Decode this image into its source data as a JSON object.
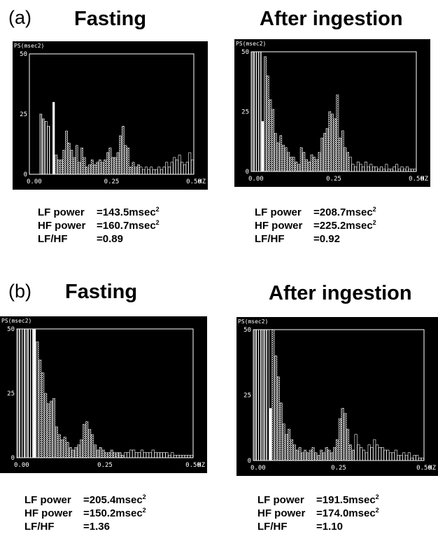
{
  "panels": [
    {
      "label": "(a)",
      "title_left": "Fasting",
      "title_right": "After ingestion"
    },
    {
      "label": "(b)",
      "title_left": "Fasting",
      "title_right": "After ingestion"
    }
  ],
  "stats": {
    "a_fasting": [
      {
        "name": "LF power",
        "value": "=143.5msec",
        "sup": "2"
      },
      {
        "name": "HF power",
        "value": "=160.7msec",
        "sup": "2"
      },
      {
        "name": "LF/HF",
        "value": "=0.89",
        "sup": ""
      }
    ],
    "a_after": [
      {
        "name": "LF power",
        "value": "=208.7msec",
        "sup": "2"
      },
      {
        "name": "HF power",
        "value": "=225.2msec",
        "sup": "2"
      },
      {
        "name": "LF/HF",
        "value": "=0.92",
        "sup": ""
      }
    ],
    "b_fasting": [
      {
        "name": "LF power",
        "value": "=205.4msec",
        "sup": "2"
      },
      {
        "name": "HF power",
        "value": "=150.2msec",
        "sup": "2"
      },
      {
        "name": "LF/HF",
        "value": "=1.36",
        "sup": ""
      }
    ],
    "b_after": [
      {
        "name": "LF power",
        "value": "=191.5msec",
        "sup": "2"
      },
      {
        "name": "HF power",
        "value": "=174.0msec",
        "sup": "2"
      },
      {
        "name": "LF/HF",
        "value": "=1.10",
        "sup": ""
      }
    ]
  },
  "colors": {
    "plot_bg": "#000000",
    "plot_fg": "#ffffff",
    "page_bg": "#ffffff"
  },
  "chart_data": [
    {
      "id": "a_fasting",
      "type": "bar",
      "ylabel": "PS(msec2)",
      "xlabel": "HZ",
      "xlim": [
        0.0,
        0.5
      ],
      "ylim": [
        0,
        50
      ],
      "xticks": [
        "0.00",
        "0.25",
        "0.50"
      ],
      "yticks": [
        "0",
        "25",
        "50"
      ],
      "bin_width": 0.0078125,
      "bin_start": 0.0,
      "values": [
        0,
        0,
        0,
        0,
        25,
        23,
        22,
        20,
        0,
        30,
        8,
        6,
        6,
        10,
        18,
        13,
        10,
        7,
        12,
        5,
        11,
        7,
        3,
        4,
        6,
        4,
        5,
        6,
        5,
        6,
        9,
        11,
        7,
        7,
        9,
        16,
        20,
        12,
        11,
        3,
        5,
        3,
        4,
        3,
        2,
        3,
        2,
        3,
        2,
        2,
        3,
        2,
        3,
        5,
        3,
        5,
        7,
        6,
        8,
        5,
        4,
        5,
        9,
        6
      ],
      "bar_styles": [
        "e",
        "e",
        "e",
        "e",
        "v",
        "v",
        "v",
        "v",
        "e",
        "s",
        "h",
        "h",
        "h",
        "h",
        "h",
        "h",
        "h",
        "h",
        "h",
        "h",
        "h",
        "h",
        "h",
        "h",
        "h",
        "h",
        "h",
        "h",
        "h",
        "h",
        "h",
        "h",
        "h",
        "h",
        "h",
        "h",
        "h",
        "h",
        "h",
        "h",
        "h",
        "h",
        "h",
        "o",
        "o",
        "o",
        "o",
        "o",
        "o",
        "o",
        "o",
        "o",
        "o",
        "o",
        "o",
        "o",
        "o",
        "o",
        "o",
        "o",
        "o",
        "o",
        "o",
        "o"
      ]
    },
    {
      "id": "a_after",
      "type": "bar",
      "ylabel": "PS(msec2)",
      "xlabel": "HZ",
      "xlim": [
        0.0,
        0.5
      ],
      "ylim": [
        0,
        50
      ],
      "xticks": [
        "0.00",
        "0.25",
        "0.50"
      ],
      "yticks": [
        "0",
        "25",
        "50"
      ],
      "bin_width": 0.0078125,
      "bin_start": 0.0,
      "values": [
        50,
        50,
        50,
        50,
        21,
        48,
        40,
        30,
        26,
        16,
        12,
        15,
        11,
        10,
        8,
        6,
        6,
        4,
        3,
        10,
        8,
        5,
        4,
        7,
        6,
        5,
        8,
        14,
        16,
        18,
        25,
        24,
        22,
        32,
        14,
        17,
        10,
        8,
        6,
        3,
        2,
        4,
        3,
        2,
        4,
        2,
        3,
        2,
        2,
        1,
        2,
        1,
        3,
        1,
        1,
        2,
        3,
        1,
        2,
        1,
        2,
        1,
        1,
        1
      ],
      "bar_styles": [
        "v",
        "v",
        "v",
        "v",
        "s",
        "h",
        "h",
        "h",
        "h",
        "h",
        "h",
        "h",
        "h",
        "h",
        "h",
        "h",
        "h",
        "h",
        "h",
        "h",
        "h",
        "h",
        "h",
        "h",
        "h",
        "h",
        "h",
        "h",
        "h",
        "h",
        "h",
        "h",
        "h",
        "h",
        "h",
        "h",
        "h",
        "h",
        "o",
        "o",
        "o",
        "o",
        "o",
        "o",
        "o",
        "o",
        "o",
        "o",
        "o",
        "o",
        "o",
        "o",
        "o",
        "o",
        "o",
        "o",
        "o",
        "o",
        "o",
        "o",
        "o",
        "o",
        "o",
        "o"
      ]
    },
    {
      "id": "b_fasting",
      "type": "bar",
      "ylabel": "PS(msec2)",
      "xlabel": "HZ",
      "xlim": [
        0.0,
        0.5
      ],
      "ylim": [
        0,
        50
      ],
      "xticks": [
        "0.00",
        "0.25",
        "0.50"
      ],
      "yticks": [
        "0",
        "25",
        "50"
      ],
      "bin_width": 0.0078125,
      "bin_start": 0.0,
      "values": [
        50,
        50,
        50,
        50,
        50,
        50,
        50,
        45,
        38,
        33,
        25,
        21,
        22,
        23,
        12,
        9,
        7,
        8,
        6,
        4,
        3,
        4,
        5,
        7,
        13,
        14,
        11,
        9,
        5,
        3,
        4,
        3,
        2,
        2,
        3,
        2,
        2,
        2,
        1,
        2,
        2,
        3,
        3,
        2,
        2,
        3,
        2,
        2,
        2,
        3,
        2,
        2,
        2,
        2,
        2,
        1,
        2,
        1,
        1,
        1,
        1,
        1,
        1,
        1
      ],
      "bar_styles": [
        "v",
        "v",
        "v",
        "v",
        "v",
        "v",
        "s",
        "h",
        "h",
        "h",
        "h",
        "h",
        "h",
        "h",
        "h",
        "h",
        "h",
        "h",
        "h",
        "h",
        "h",
        "h",
        "h",
        "h",
        "h",
        "h",
        "h",
        "h",
        "h",
        "h",
        "h",
        "h",
        "h",
        "h",
        "h",
        "h",
        "h",
        "h",
        "h",
        "o",
        "o",
        "o",
        "o",
        "o",
        "o",
        "o",
        "o",
        "o",
        "o",
        "o",
        "o",
        "o",
        "o",
        "o",
        "o",
        "o",
        "o",
        "o",
        "o",
        "o",
        "o",
        "o",
        "o",
        "o"
      ]
    },
    {
      "id": "b_after",
      "type": "bar",
      "ylabel": "PS(msec2)",
      "xlabel": "HZ",
      "xlim": [
        0.0,
        0.5
      ],
      "ylim": [
        0,
        50
      ],
      "xticks": [
        "0.00",
        "0.25",
        "0.50"
      ],
      "yticks": [
        "0",
        "25",
        "50"
      ],
      "bin_width": 0.0078125,
      "bin_start": 0.0,
      "values": [
        50,
        50,
        50,
        50,
        50,
        50,
        20,
        50,
        40,
        32,
        22,
        14,
        10,
        12,
        8,
        6,
        4,
        5,
        3,
        4,
        3,
        4,
        5,
        3,
        2,
        4,
        3,
        5,
        4,
        3,
        5,
        8,
        16,
        20,
        18,
        12,
        6,
        4,
        10,
        6,
        5,
        4,
        3,
        6,
        5,
        8,
        6,
        5,
        5,
        4,
        4,
        3,
        3,
        4,
        2,
        2,
        3,
        2,
        3,
        1,
        2,
        2,
        1,
        1
      ],
      "bar_styles": [
        "v",
        "v",
        "v",
        "v",
        "v",
        "v",
        "s",
        "h",
        "h",
        "h",
        "h",
        "h",
        "h",
        "h",
        "h",
        "h",
        "h",
        "h",
        "h",
        "h",
        "h",
        "h",
        "h",
        "h",
        "h",
        "h",
        "h",
        "h",
        "h",
        "h",
        "h",
        "h",
        "h",
        "h",
        "h",
        "h",
        "h",
        "h",
        "o",
        "o",
        "o",
        "o",
        "o",
        "o",
        "o",
        "o",
        "o",
        "o",
        "o",
        "o",
        "o",
        "o",
        "o",
        "o",
        "o",
        "o",
        "o",
        "o",
        "o",
        "o",
        "o",
        "o",
        "o",
        "o"
      ]
    }
  ]
}
